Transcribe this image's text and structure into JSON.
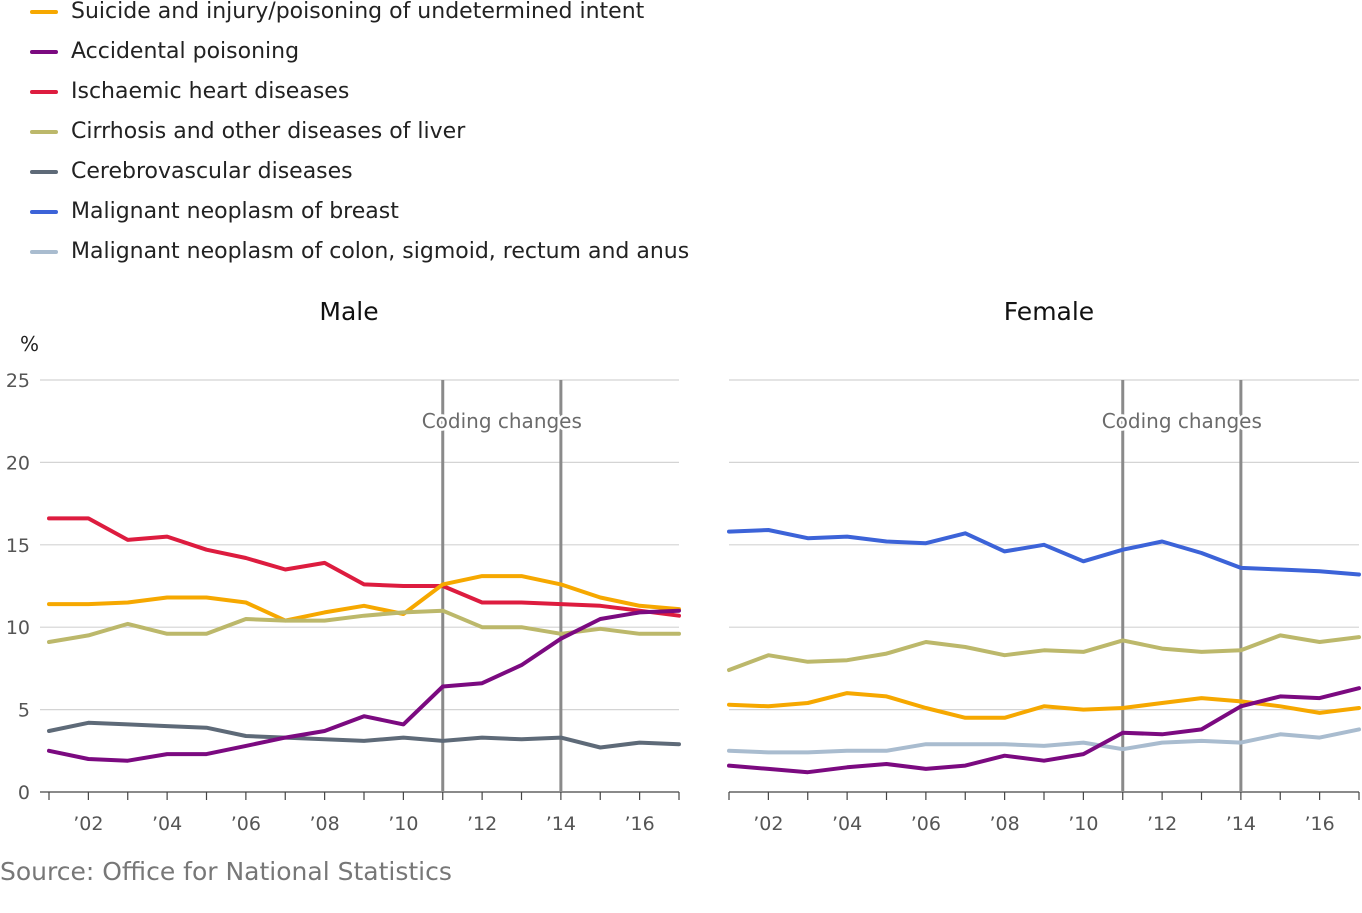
{
  "legend": [
    {
      "label": "Suicide and injury/poisoning of undetermined intent",
      "color": "#f6a800"
    },
    {
      "label": "Accidental poisoning",
      "color": "#7b0a80"
    },
    {
      "label": "Ischaemic heart diseases",
      "color": "#dd1c3f"
    },
    {
      "label": "Cirrhosis and other diseases of liver",
      "color": "#bcb86b"
    },
    {
      "label": "Cerebrovascular diseases",
      "color": "#5e6a78"
    },
    {
      "label": "Malignant neoplasm of breast",
      "color": "#3c63d8"
    },
    {
      "label": "Malignant neoplasm of colon, sigmoid, rectum and anus",
      "color": "#a9bccf"
    }
  ],
  "source": "Source: Office for National Statistics",
  "chart_data": [
    {
      "type": "line",
      "title": "Male",
      "ylabel": "%",
      "xlabel": "",
      "ylim": [
        0,
        25
      ],
      "yticks": [
        0,
        5,
        10,
        15,
        20,
        25
      ],
      "xlim": [
        2001,
        2017
      ],
      "x": [
        2001,
        2002,
        2003,
        2004,
        2005,
        2006,
        2007,
        2008,
        2009,
        2010,
        2011,
        2012,
        2013,
        2014,
        2015,
        2016,
        2017
      ],
      "xticks": [
        2002,
        2004,
        2006,
        2008,
        2010,
        2012,
        2014,
        2016
      ],
      "xticklabels": [
        "’02",
        "’04",
        "’06",
        "’08",
        "’10",
        "’12",
        "’14",
        "’16"
      ],
      "grid": true,
      "legend_position": "top-left",
      "annotation": {
        "label": "Coding changes",
        "lines": [
          2011,
          2014
        ]
      },
      "series": [
        {
          "name": "Ischaemic heart diseases",
          "color": "#dd1c3f",
          "values": [
            16.6,
            16.6,
            15.3,
            15.5,
            14.7,
            14.2,
            13.5,
            13.9,
            12.6,
            12.5,
            12.5,
            11.5,
            11.5,
            11.4,
            11.3,
            11.0,
            10.7
          ]
        },
        {
          "name": "Suicide and injury/poisoning of undetermined intent",
          "color": "#f6a800",
          "values": [
            11.4,
            11.4,
            11.5,
            11.8,
            11.8,
            11.5,
            10.4,
            10.9,
            11.3,
            10.8,
            12.6,
            13.1,
            13.1,
            12.6,
            11.8,
            11.3,
            11.1
          ]
        },
        {
          "name": "Cirrhosis and other diseases of liver",
          "color": "#bcb86b",
          "values": [
            9.1,
            9.5,
            10.2,
            9.6,
            9.6,
            10.5,
            10.4,
            10.4,
            10.7,
            10.9,
            11.0,
            10.0,
            10.0,
            9.6,
            9.9,
            9.6,
            9.6
          ]
        },
        {
          "name": "Cerebrovascular diseases",
          "color": "#5e6a78",
          "values": [
            3.7,
            4.2,
            4.1,
            4.0,
            3.9,
            3.4,
            3.3,
            3.2,
            3.1,
            3.3,
            3.1,
            3.3,
            3.2,
            3.3,
            2.7,
            3.0,
            2.9
          ]
        },
        {
          "name": "Accidental poisoning",
          "color": "#7b0a80",
          "values": [
            2.5,
            2.0,
            1.9,
            2.3,
            2.3,
            2.8,
            3.3,
            3.7,
            4.6,
            4.1,
            6.4,
            6.6,
            7.7,
            9.3,
            10.5,
            10.9,
            11.0
          ]
        }
      ]
    },
    {
      "type": "line",
      "title": "Female",
      "ylabel": "",
      "xlabel": "",
      "ylim": [
        0,
        25
      ],
      "yticks": [
        0,
        5,
        10,
        15,
        20,
        25
      ],
      "xlim": [
        2001,
        2017
      ],
      "x": [
        2001,
        2002,
        2003,
        2004,
        2005,
        2006,
        2007,
        2008,
        2009,
        2010,
        2011,
        2012,
        2013,
        2014,
        2015,
        2016,
        2017
      ],
      "xticks": [
        2002,
        2004,
        2006,
        2008,
        2010,
        2012,
        2014,
        2016
      ],
      "xticklabels": [
        "’02",
        "’04",
        "’06",
        "’08",
        "’10",
        "’12",
        "’14",
        "’16"
      ],
      "grid": true,
      "annotation": {
        "label": "Coding changes",
        "lines": [
          2011,
          2014
        ]
      },
      "series": [
        {
          "name": "Malignant neoplasm of breast",
          "color": "#3c63d8",
          "values": [
            15.8,
            15.9,
            15.4,
            15.5,
            15.2,
            15.1,
            15.7,
            14.6,
            15.0,
            14.0,
            14.7,
            15.2,
            14.5,
            13.6,
            13.5,
            13.4,
            13.2
          ]
        },
        {
          "name": "Cirrhosis and other diseases of liver",
          "color": "#bcb86b",
          "values": [
            7.4,
            8.3,
            7.9,
            8.0,
            8.4,
            9.1,
            8.8,
            8.3,
            8.6,
            8.5,
            9.2,
            8.7,
            8.5,
            8.6,
            9.5,
            9.1,
            9.4
          ]
        },
        {
          "name": "Suicide and injury/poisoning of undetermined intent",
          "color": "#f6a800",
          "values": [
            5.3,
            5.2,
            5.4,
            6.0,
            5.8,
            5.1,
            4.5,
            4.5,
            5.2,
            5.0,
            5.1,
            5.4,
            5.7,
            5.5,
            5.2,
            4.8,
            5.1
          ]
        },
        {
          "name": "Malignant neoplasm of colon, sigmoid, rectum and anus",
          "color": "#a9bccf",
          "values": [
            2.5,
            2.4,
            2.4,
            2.5,
            2.5,
            2.9,
            2.9,
            2.9,
            2.8,
            3.0,
            2.6,
            3.0,
            3.1,
            3.0,
            3.5,
            3.3,
            3.8
          ]
        },
        {
          "name": "Accidental poisoning",
          "color": "#7b0a80",
          "values": [
            1.6,
            1.4,
            1.2,
            1.5,
            1.7,
            1.4,
            1.6,
            2.2,
            1.9,
            2.3,
            3.6,
            3.5,
            3.8,
            5.2,
            5.8,
            5.7,
            6.3
          ]
        }
      ]
    }
  ]
}
